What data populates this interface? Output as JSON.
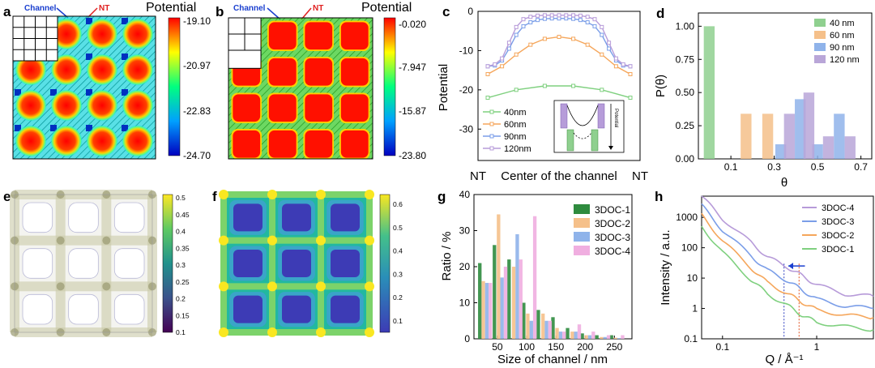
{
  "panels": {
    "a": {
      "letter": "a",
      "title": "Potential",
      "channel_label": "Channel",
      "nt_label": "NT",
      "colorbar_ticks": [
        "-19.10",
        "-20.97",
        "-22.83",
        "-24.70"
      ],
      "colorbar_colors": [
        "#ff0000",
        "#ffff00",
        "#00ff80",
        "#00a0ff",
        "#0000c0"
      ]
    },
    "b": {
      "letter": "b",
      "title": "Potential",
      "channel_label": "Channel",
      "nt_label": "NT",
      "colorbar_ticks": [
        "-0.020",
        "-7.947",
        "-15.87",
        "-23.80"
      ],
      "colorbar_colors": [
        "#ff0000",
        "#ffff00",
        "#00ff80",
        "#00a0ff",
        "#0000c0"
      ]
    },
    "e": {
      "letter": "e",
      "colorbar_ticks": [
        "0.5",
        "0.45",
        "0.4",
        "0.35",
        "0.3",
        "0.25",
        "0.2",
        "0.15",
        "0.1"
      ]
    },
    "f": {
      "letter": "f",
      "colorbar_ticks": [
        "0.6",
        "0.5",
        "0.4",
        "0.3",
        "0.2",
        "0.1"
      ]
    }
  },
  "chart_data": [
    {
      "id": "c",
      "letter": "c",
      "type": "line",
      "ylabel": "Potential",
      "xlabel": [
        "NT",
        "Center of the channel",
        "NT"
      ],
      "ylim": [
        -38,
        0
      ],
      "yticks": [
        "0",
        "-10",
        "-20",
        "-30"
      ],
      "series": [
        {
          "name": "40nm",
          "color": "#7fd07f",
          "x": [
            0,
            0.2,
            0.4,
            0.6,
            0.8,
            1.0
          ],
          "values": [
            -22,
            -20,
            -19,
            -19,
            -20,
            -22
          ]
        },
        {
          "name": "60nm",
          "color": "#f5a65b",
          "x": [
            0,
            0.1,
            0.2,
            0.3,
            0.4,
            0.5,
            0.6,
            0.7,
            0.8,
            0.9,
            1.0
          ],
          "values": [
            -16,
            -14,
            -11,
            -8.5,
            -7,
            -6.5,
            -7,
            -8.5,
            -11,
            -14,
            -16
          ]
        },
        {
          "name": "90nm",
          "color": "#7b9ee8",
          "x": [
            0,
            0.05,
            0.1,
            0.15,
            0.2,
            0.25,
            0.3,
            0.35,
            0.4,
            0.45,
            0.5,
            0.55,
            0.6,
            0.65,
            0.7,
            0.75,
            0.8,
            0.85,
            0.9,
            0.95,
            1.0
          ],
          "values": [
            -14,
            -13.8,
            -12.5,
            -9.5,
            -6,
            -3.8,
            -2.8,
            -2.2,
            -1.9,
            -1.8,
            -1.8,
            -1.8,
            -1.9,
            -2.2,
            -2.8,
            -3.8,
            -6,
            -9.5,
            -12.5,
            -13.8,
            -14
          ]
        },
        {
          "name": "120nm",
          "color": "#b79bd9",
          "x": [
            0,
            0.05,
            0.1,
            0.15,
            0.2,
            0.25,
            0.3,
            0.35,
            0.4,
            0.45,
            0.5,
            0.55,
            0.6,
            0.65,
            0.7,
            0.75,
            0.8,
            0.85,
            0.9,
            0.95,
            1.0
          ],
          "values": [
            -14,
            -13.5,
            -12,
            -8,
            -4,
            -2,
            -1.4,
            -1.1,
            -1,
            -1,
            -1,
            -1,
            -1,
            -1.1,
            -1.4,
            -2,
            -4,
            -8,
            -12,
            -13.5,
            -14
          ]
        }
      ]
    },
    {
      "id": "d",
      "letter": "d",
      "type": "bar",
      "ylabel": "P(θ)",
      "xlabel": "θ",
      "ylim": [
        0,
        1.1
      ],
      "yticks": [
        "0.00",
        "0.25",
        "0.50",
        "0.75",
        "1.00"
      ],
      "xticks": [
        "0.1",
        "0.3",
        "0.5",
        "0.7"
      ],
      "xlim": [
        -0.05,
        0.75
      ],
      "bar_width": 0.05,
      "series": [
        {
          "name": "40 nm",
          "color": "#8fd08f",
          "x": [
            0
          ],
          "values": [
            1.0
          ]
        },
        {
          "name": "60 nm",
          "color": "#f5c08a",
          "x": [
            0.17,
            0.27
          ],
          "values": [
            0.34,
            0.34
          ]
        },
        {
          "name": "90 nm",
          "color": "#8fb3ea",
          "x": [
            0.33,
            0.42,
            0.5,
            0.6
          ],
          "values": [
            0.11,
            0.45,
            0.11,
            0.34
          ]
        },
        {
          "name": "120 nm",
          "color": "#b9a6d8",
          "x": [
            0.37,
            0.46,
            0.55,
            0.65
          ],
          "values": [
            0.34,
            0.5,
            0.17,
            0.17
          ]
        }
      ]
    },
    {
      "id": "g",
      "letter": "g",
      "type": "bar",
      "ylabel": "Ratio / %",
      "xlabel": "Size of channel / nm",
      "ylim": [
        0,
        40
      ],
      "yticks": [
        "0",
        "10",
        "20",
        "30",
        "40"
      ],
      "xticks": [
        "50",
        "100",
        "150",
        "200",
        "250"
      ],
      "xlim": [
        10,
        280
      ],
      "bar_width": 6,
      "series": [
        {
          "name": "3DOC-1",
          "color": "#2e8b3e",
          "x": [
            20,
            45,
            70,
            95,
            120,
            145,
            170,
            195,
            220,
            245
          ],
          "values": [
            21,
            26,
            22,
            10,
            8,
            6,
            3,
            1.5,
            1,
            1
          ]
        },
        {
          "name": "3DOC-2",
          "color": "#f5c08a",
          "x": [
            26,
            52,
            78,
            102,
            128,
            152,
            178,
            202,
            228,
            252
          ],
          "values": [
            16,
            34.5,
            20,
            7,
            7,
            3,
            2,
            1,
            0.5,
            0.3
          ]
        },
        {
          "name": "3DOC-3",
          "color": "#8fb3ea",
          "x": [
            32,
            58,
            84,
            108,
            134,
            158,
            184,
            208,
            234,
            258
          ],
          "values": [
            15.5,
            17,
            29,
            5,
            5,
            2,
            2,
            1,
            0.5,
            0.2
          ]
        },
        {
          "name": "3DOC-4",
          "color": "#f0aee0",
          "x": [
            38,
            64,
            90,
            114,
            140,
            164,
            190,
            214,
            240,
            264
          ],
          "values": [
            15.5,
            20,
            22,
            34,
            5,
            2,
            4,
            2,
            1,
            1
          ]
        }
      ]
    },
    {
      "id": "h",
      "letter": "h",
      "type": "line",
      "ylabel": "Intensity / a.u.",
      "xlabel": "Q / Å⁻¹",
      "xscale": "log",
      "yscale": "log",
      "xlim": [
        0.06,
        4
      ],
      "ylim": [
        0.1,
        5000
      ],
      "yticks": [
        "0.1",
        "1",
        "10",
        "100",
        "1000"
      ],
      "xticks": [
        "0.1",
        "1"
      ],
      "markers": [
        0.45,
        0.65
      ],
      "series": [
        {
          "name": "3DOC-4",
          "color": "#b79bd9",
          "x": [
            0.06,
            0.1,
            0.2,
            0.3,
            0.5,
            0.7,
            1,
            2,
            4
          ],
          "values": [
            5000,
            900,
            150,
            50,
            22,
            12,
            6,
            3,
            2.5
          ]
        },
        {
          "name": "3DOC-3",
          "color": "#7b9ee8",
          "x": [
            0.06,
            0.1,
            0.2,
            0.3,
            0.5,
            0.7,
            1,
            2,
            4
          ],
          "values": [
            2500,
            380,
            55,
            18,
            8,
            4,
            2,
            1.2,
            1
          ]
        },
        {
          "name": "3DOC-2",
          "color": "#f5a65b",
          "x": [
            0.06,
            0.1,
            0.2,
            0.3,
            0.5,
            0.7,
            1,
            2,
            4
          ],
          "values": [
            1200,
            170,
            22,
            7,
            3,
            1.6,
            0.9,
            0.6,
            0.5
          ]
        },
        {
          "name": "3DOC-1",
          "color": "#7fd07f",
          "x": [
            0.06,
            0.1,
            0.2,
            0.3,
            0.5,
            0.7,
            1,
            2,
            4
          ],
          "values": [
            500,
            70,
            9,
            3,
            1.2,
            0.6,
            0.35,
            0.25,
            0.2
          ]
        }
      ]
    }
  ]
}
